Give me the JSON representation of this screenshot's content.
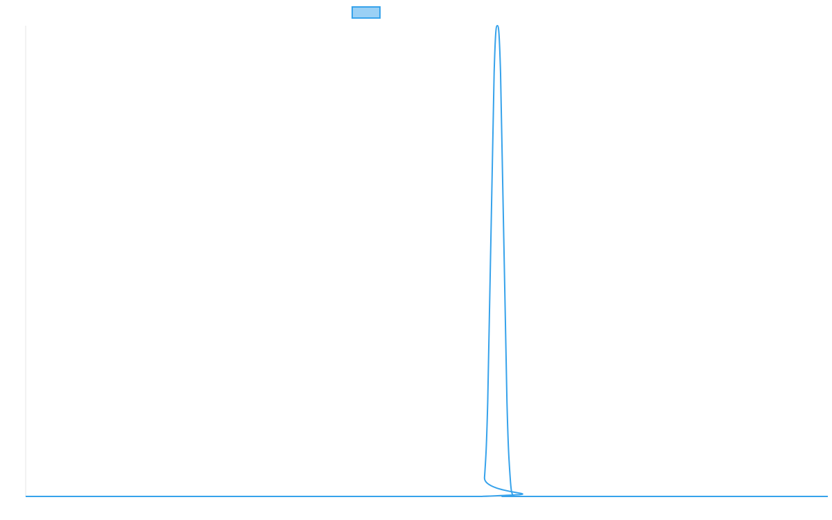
{
  "chart_data": {
    "type": "line",
    "title": "",
    "xlabel": "",
    "ylabel": "",
    "grid": false,
    "legend": {
      "placement": "top-center",
      "entries": [
        {
          "name": "",
          "color": "#36a2eb",
          "fill": "#9ad0f5"
        }
      ]
    },
    "xlim": [
      0,
      100
    ],
    "ylim": [
      0,
      100
    ],
    "series": [
      {
        "name": "",
        "color": "#36a2eb",
        "x": [
          0,
          56.8,
          57.2,
          57.6,
          58.0,
          58.4,
          58.8,
          59.2,
          59.6,
          60.0,
          60.4,
          60.8,
          61.2,
          61.6,
          62.0,
          62.4,
          62.8,
          100
        ],
        "y": [
          0,
          0,
          4,
          20,
          55,
          90,
          100,
          90,
          55,
          20,
          4,
          0,
          0,
          0,
          0,
          0,
          0,
          0
        ]
      }
    ]
  },
  "colors": {
    "axis": "#e5e5e5",
    "series": "#36a2eb",
    "legend_fill": "#9ad0f5"
  }
}
